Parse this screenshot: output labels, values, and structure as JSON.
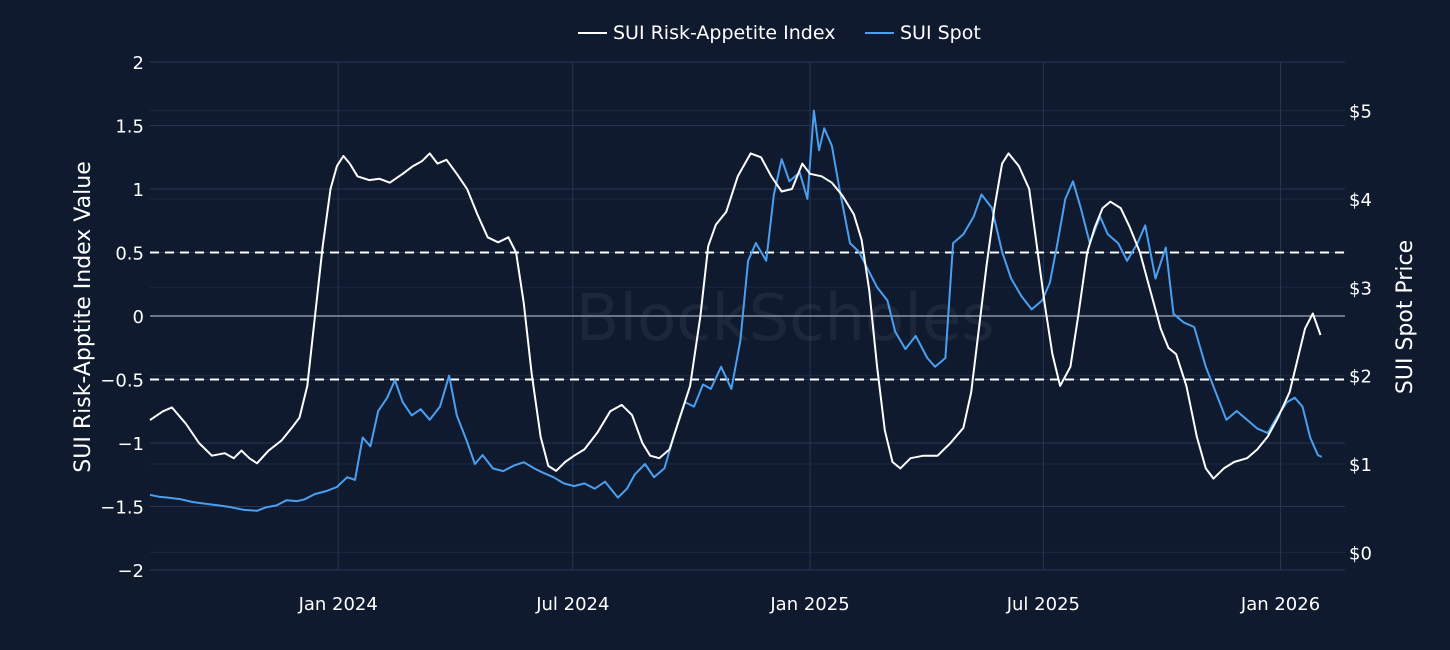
{
  "chart_data": {
    "type": "line",
    "watermark": "BlockScholes",
    "legend": {
      "placement": "top-center"
    },
    "colors": {
      "background": "#0f1a2e",
      "grid": "#253555",
      "index": "#ffffff",
      "spot": "#4a9ff0",
      "zero": "#8a93a6",
      "threshold": "#ffffff"
    },
    "grid": true,
    "xaxis": {
      "range": [
        "2023-08-08",
        "2026-02-20"
      ],
      "ticks": [
        {
          "date": "2024-01-01",
          "label": "Jan 2024"
        },
        {
          "date": "2024-07-01",
          "label": "Jul 2024"
        },
        {
          "date": "2025-01-01",
          "label": "Jan 2025"
        },
        {
          "date": "2025-07-01",
          "label": "Jul 2025"
        },
        {
          "date": "2026-01-01",
          "label": "Jan 2026"
        }
      ]
    },
    "y_left": {
      "title": "SUI Risk-Apptite Index Value",
      "range": [
        -2,
        2
      ],
      "ticks": [
        {
          "value": 2,
          "label": "2"
        },
        {
          "value": 1.5,
          "label": "1.5"
        },
        {
          "value": 1,
          "label": "1"
        },
        {
          "value": 0.5,
          "label": "0.5"
        },
        {
          "value": 0,
          "label": "0"
        },
        {
          "value": -0.5,
          "label": "−0.5"
        },
        {
          "value": -1,
          "label": "−1"
        },
        {
          "value": -1.5,
          "label": "−1.5"
        },
        {
          "value": -2,
          "label": "−2"
        }
      ],
      "thresholds": [
        0.5,
        -0.5
      ]
    },
    "y_right": {
      "title": "SUI Spot Price",
      "range": [
        -0.2,
        5.55
      ],
      "ticks": [
        {
          "value": 0,
          "label": "$0"
        },
        {
          "value": 1,
          "label": "$1"
        },
        {
          "value": 2,
          "label": "$2"
        },
        {
          "value": 3,
          "label": "$3"
        },
        {
          "value": 4,
          "label": "$4"
        },
        {
          "value": 5,
          "label": "$5"
        }
      ]
    },
    "series": [
      {
        "name": "SUI Risk-Appetite Index",
        "axis": "left",
        "points": [
          [
            "2023-08-08",
            -0.82
          ],
          [
            "2023-08-18",
            -0.75
          ],
          [
            "2023-08-25",
            -0.72
          ],
          [
            "2023-09-05",
            -0.85
          ],
          [
            "2023-09-15",
            -1.0
          ],
          [
            "2023-09-25",
            -1.1
          ],
          [
            "2023-10-05",
            -1.08
          ],
          [
            "2023-10-12",
            -1.12
          ],
          [
            "2023-10-18",
            -1.06
          ],
          [
            "2023-10-24",
            -1.12
          ],
          [
            "2023-10-30",
            -1.16
          ],
          [
            "2023-11-08",
            -1.06
          ],
          [
            "2023-11-18",
            -0.98
          ],
          [
            "2023-11-26",
            -0.88
          ],
          [
            "2023-12-02",
            -0.8
          ],
          [
            "2023-12-08",
            -0.55
          ],
          [
            "2023-12-14",
            0.0
          ],
          [
            "2023-12-20",
            0.55
          ],
          [
            "2023-12-26",
            1.0
          ],
          [
            "2023-12-31",
            1.18
          ],
          [
            "2024-01-05",
            1.26
          ],
          [
            "2024-01-10",
            1.2
          ],
          [
            "2024-01-16",
            1.1
          ],
          [
            "2024-01-25",
            1.07
          ],
          [
            "2024-02-02",
            1.08
          ],
          [
            "2024-02-10",
            1.05
          ],
          [
            "2024-02-20",
            1.12
          ],
          [
            "2024-02-28",
            1.18
          ],
          [
            "2024-03-06",
            1.22
          ],
          [
            "2024-03-12",
            1.28
          ],
          [
            "2024-03-18",
            1.2
          ],
          [
            "2024-03-25",
            1.23
          ],
          [
            "2024-04-02",
            1.12
          ],
          [
            "2024-04-10",
            1.0
          ],
          [
            "2024-04-18",
            0.8
          ],
          [
            "2024-04-26",
            0.62
          ],
          [
            "2024-05-04",
            0.58
          ],
          [
            "2024-05-12",
            0.62
          ],
          [
            "2024-05-18",
            0.5
          ],
          [
            "2024-05-24",
            0.1
          ],
          [
            "2024-05-30",
            -0.45
          ],
          [
            "2024-06-06",
            -0.95
          ],
          [
            "2024-06-12",
            -1.18
          ],
          [
            "2024-06-18",
            -1.22
          ],
          [
            "2024-06-25",
            -1.15
          ],
          [
            "2024-07-02",
            -1.1
          ],
          [
            "2024-07-10",
            -1.05
          ],
          [
            "2024-07-20",
            -0.92
          ],
          [
            "2024-07-30",
            -0.75
          ],
          [
            "2024-08-08",
            -0.7
          ],
          [
            "2024-08-16",
            -0.78
          ],
          [
            "2024-08-24",
            -1.0
          ],
          [
            "2024-08-30",
            -1.1
          ],
          [
            "2024-09-06",
            -1.12
          ],
          [
            "2024-09-14",
            -1.05
          ],
          [
            "2024-09-22",
            -0.8
          ],
          [
            "2024-09-30",
            -0.55
          ],
          [
            "2024-10-08",
            0.0
          ],
          [
            "2024-10-14",
            0.55
          ],
          [
            "2024-10-20",
            0.72
          ],
          [
            "2024-10-28",
            0.82
          ],
          [
            "2024-11-06",
            1.1
          ],
          [
            "2024-11-16",
            1.28
          ],
          [
            "2024-11-24",
            1.25
          ],
          [
            "2024-12-02",
            1.1
          ],
          [
            "2024-12-10",
            0.98
          ],
          [
            "2024-12-18",
            1.0
          ],
          [
            "2024-12-26",
            1.2
          ],
          [
            "2025-01-01",
            1.12
          ],
          [
            "2025-01-10",
            1.1
          ],
          [
            "2025-01-18",
            1.05
          ],
          [
            "2025-01-26",
            0.95
          ],
          [
            "2025-02-04",
            0.8
          ],
          [
            "2025-02-10",
            0.6
          ],
          [
            "2025-02-16",
            0.2
          ],
          [
            "2025-02-22",
            -0.4
          ],
          [
            "2025-02-28",
            -0.9
          ],
          [
            "2025-03-06",
            -1.15
          ],
          [
            "2025-03-12",
            -1.2
          ],
          [
            "2025-03-20",
            -1.12
          ],
          [
            "2025-03-30",
            -1.1
          ],
          [
            "2025-04-10",
            -1.1
          ],
          [
            "2025-04-20",
            -1.0
          ],
          [
            "2025-04-30",
            -0.88
          ],
          [
            "2025-05-06",
            -0.6
          ],
          [
            "2025-05-12",
            -0.1
          ],
          [
            "2025-05-18",
            0.4
          ],
          [
            "2025-05-24",
            0.85
          ],
          [
            "2025-05-30",
            1.2
          ],
          [
            "2025-06-04",
            1.28
          ],
          [
            "2025-06-12",
            1.18
          ],
          [
            "2025-06-20",
            1.0
          ],
          [
            "2025-06-26",
            0.55
          ],
          [
            "2025-07-02",
            0.1
          ],
          [
            "2025-07-08",
            -0.3
          ],
          [
            "2025-07-14",
            -0.55
          ],
          [
            "2025-07-22",
            -0.4
          ],
          [
            "2025-07-28",
            0.0
          ],
          [
            "2025-08-04",
            0.5
          ],
          [
            "2025-08-10",
            0.7
          ],
          [
            "2025-08-16",
            0.85
          ],
          [
            "2025-08-22",
            0.9
          ],
          [
            "2025-08-30",
            0.85
          ],
          [
            "2025-09-06",
            0.7
          ],
          [
            "2025-09-14",
            0.5
          ],
          [
            "2025-09-22",
            0.2
          ],
          [
            "2025-09-30",
            -0.1
          ],
          [
            "2025-10-06",
            -0.25
          ],
          [
            "2025-10-12",
            -0.3
          ],
          [
            "2025-10-20",
            -0.55
          ],
          [
            "2025-10-28",
            -0.95
          ],
          [
            "2025-11-04",
            -1.2
          ],
          [
            "2025-11-10",
            -1.28
          ],
          [
            "2025-11-18",
            -1.2
          ],
          [
            "2025-11-26",
            -1.15
          ],
          [
            "2025-12-06",
            -1.12
          ],
          [
            "2025-12-14",
            -1.05
          ],
          [
            "2025-12-22",
            -0.95
          ],
          [
            "2025-12-30",
            -0.8
          ],
          [
            "2026-01-08",
            -0.6
          ],
          [
            "2026-01-14",
            -0.35
          ],
          [
            "2026-01-20",
            -0.1
          ],
          [
            "2026-01-26",
            0.02
          ],
          [
            "2026-02-01",
            -0.15
          ]
        ]
      },
      {
        "name": "SUI Spot",
        "axis": "right",
        "points": [
          [
            "2023-08-08",
            0.65
          ],
          [
            "2023-08-15",
            0.63
          ],
          [
            "2023-08-22",
            0.62
          ],
          [
            "2023-09-01",
            0.6
          ],
          [
            "2023-09-10",
            0.57
          ],
          [
            "2023-09-20",
            0.55
          ],
          [
            "2023-10-01",
            0.53
          ],
          [
            "2023-10-10",
            0.51
          ],
          [
            "2023-10-20",
            0.48
          ],
          [
            "2023-10-30",
            0.47
          ],
          [
            "2023-11-06",
            0.51
          ],
          [
            "2023-11-14",
            0.53
          ],
          [
            "2023-11-22",
            0.59
          ],
          [
            "2023-11-30",
            0.58
          ],
          [
            "2023-12-06",
            0.6
          ],
          [
            "2023-12-14",
            0.66
          ],
          [
            "2023-12-22",
            0.69
          ],
          [
            "2023-12-31",
            0.74
          ],
          [
            "2024-01-08",
            0.85
          ],
          [
            "2024-01-14",
            0.82
          ],
          [
            "2024-01-20",
            1.3
          ],
          [
            "2024-01-26",
            1.2
          ],
          [
            "2024-02-01",
            1.6
          ],
          [
            "2024-02-08",
            1.75
          ],
          [
            "2024-02-14",
            1.95
          ],
          [
            "2024-02-20",
            1.7
          ],
          [
            "2024-02-27",
            1.55
          ],
          [
            "2024-03-05",
            1.62
          ],
          [
            "2024-03-12",
            1.5
          ],
          [
            "2024-03-20",
            1.65
          ],
          [
            "2024-03-27",
            2.0
          ],
          [
            "2024-04-02",
            1.55
          ],
          [
            "2024-04-10",
            1.25
          ],
          [
            "2024-04-16",
            1.0
          ],
          [
            "2024-04-22",
            1.1
          ],
          [
            "2024-04-30",
            0.95
          ],
          [
            "2024-05-08",
            0.92
          ],
          [
            "2024-05-16",
            0.98
          ],
          [
            "2024-05-24",
            1.02
          ],
          [
            "2024-06-01",
            0.95
          ],
          [
            "2024-06-08",
            0.9
          ],
          [
            "2024-06-16",
            0.85
          ],
          [
            "2024-06-24",
            0.78
          ],
          [
            "2024-07-02",
            0.75
          ],
          [
            "2024-07-10",
            0.78
          ],
          [
            "2024-07-18",
            0.72
          ],
          [
            "2024-07-26",
            0.8
          ],
          [
            "2024-08-05",
            0.62
          ],
          [
            "2024-08-12",
            0.72
          ],
          [
            "2024-08-18",
            0.88
          ],
          [
            "2024-08-26",
            1.0
          ],
          [
            "2024-09-02",
            0.85
          ],
          [
            "2024-09-10",
            0.95
          ],
          [
            "2024-09-18",
            1.35
          ],
          [
            "2024-09-26",
            1.7
          ],
          [
            "2024-10-03",
            1.65
          ],
          [
            "2024-10-10",
            1.9
          ],
          [
            "2024-10-16",
            1.85
          ],
          [
            "2024-10-24",
            2.1
          ],
          [
            "2024-11-01",
            1.85
          ],
          [
            "2024-11-08",
            2.4
          ],
          [
            "2024-11-14",
            3.3
          ],
          [
            "2024-11-20",
            3.5
          ],
          [
            "2024-11-28",
            3.3
          ],
          [
            "2024-12-04",
            4.05
          ],
          [
            "2024-12-10",
            4.45
          ],
          [
            "2024-12-16",
            4.2
          ],
          [
            "2024-12-24",
            4.3
          ],
          [
            "2024-12-30",
            4.0
          ],
          [
            "2025-01-04",
            5.0
          ],
          [
            "2025-01-08",
            4.55
          ],
          [
            "2025-01-12",
            4.8
          ],
          [
            "2025-01-18",
            4.6
          ],
          [
            "2025-01-24",
            4.1
          ],
          [
            "2025-02-01",
            3.5
          ],
          [
            "2025-02-08",
            3.4
          ],
          [
            "2025-02-15",
            3.2
          ],
          [
            "2025-02-22",
            3.0
          ],
          [
            "2025-03-02",
            2.85
          ],
          [
            "2025-03-08",
            2.5
          ],
          [
            "2025-03-16",
            2.3
          ],
          [
            "2025-03-24",
            2.45
          ],
          [
            "2025-04-02",
            2.2
          ],
          [
            "2025-04-08",
            2.1
          ],
          [
            "2025-04-16",
            2.2
          ],
          [
            "2025-04-22",
            3.5
          ],
          [
            "2025-04-30",
            3.6
          ],
          [
            "2025-05-08",
            3.8
          ],
          [
            "2025-05-14",
            4.05
          ],
          [
            "2025-05-22",
            3.9
          ],
          [
            "2025-05-30",
            3.4
          ],
          [
            "2025-06-06",
            3.1
          ],
          [
            "2025-06-14",
            2.9
          ],
          [
            "2025-06-22",
            2.75
          ],
          [
            "2025-06-30",
            2.85
          ],
          [
            "2025-07-06",
            3.05
          ],
          [
            "2025-07-12",
            3.5
          ],
          [
            "2025-07-18",
            4.0
          ],
          [
            "2025-07-24",
            4.2
          ],
          [
            "2025-07-30",
            3.9
          ],
          [
            "2025-08-06",
            3.5
          ],
          [
            "2025-08-14",
            3.8
          ],
          [
            "2025-08-20",
            3.6
          ],
          [
            "2025-08-28",
            3.5
          ],
          [
            "2025-09-04",
            3.3
          ],
          [
            "2025-09-12",
            3.5
          ],
          [
            "2025-09-18",
            3.7
          ],
          [
            "2025-09-26",
            3.1
          ],
          [
            "2025-10-04",
            3.45
          ],
          [
            "2025-10-10",
            2.7
          ],
          [
            "2025-10-18",
            2.6
          ],
          [
            "2025-10-26",
            2.55
          ],
          [
            "2025-11-04",
            2.1
          ],
          [
            "2025-11-12",
            1.8
          ],
          [
            "2025-11-20",
            1.5
          ],
          [
            "2025-11-28",
            1.6
          ],
          [
            "2025-12-06",
            1.5
          ],
          [
            "2025-12-14",
            1.4
          ],
          [
            "2025-12-22",
            1.35
          ],
          [
            "2025-12-30",
            1.55
          ],
          [
            "2026-01-06",
            1.7
          ],
          [
            "2026-01-12",
            1.75
          ],
          [
            "2026-01-18",
            1.65
          ],
          [
            "2026-01-24",
            1.3
          ],
          [
            "2026-01-30",
            1.1
          ],
          [
            "2026-02-02",
            1.08
          ]
        ]
      }
    ]
  }
}
